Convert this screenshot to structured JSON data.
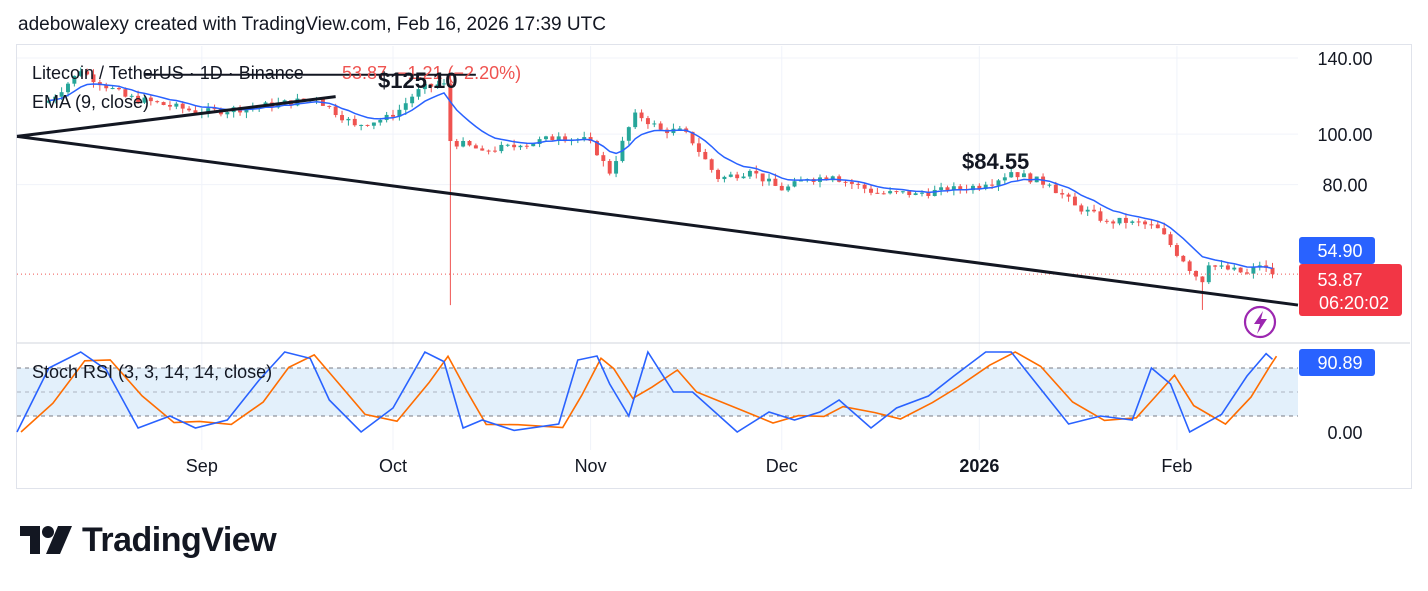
{
  "header": {
    "attribution": "adebowalexy created with TradingView.com, Feb 16, 2026 17:39 UTC"
  },
  "legend": {
    "symbol": "Litecoin / TetherUS · 1D · Binance",
    "last": "53.87",
    "change": "−1.21 (−2.20%)",
    "ema": "EMA (9, close)",
    "stoch": "Stoch RSI (3, 3, 14, 14, close)"
  },
  "annotations": {
    "high_label": "$125.10",
    "recent_high_label": "$84.55"
  },
  "price_axis": {
    "ticks": [
      {
        "value": 140,
        "label": "140.00"
      },
      {
        "value": 100,
        "label": "100.00"
      },
      {
        "value": 80,
        "label": "80.00"
      }
    ],
    "ema_badge": "54.90",
    "price_badge": "53.87",
    "countdown": "06:20:02"
  },
  "stoch_axis": {
    "ticks": [
      {
        "value": 0,
        "label": "0.00"
      }
    ],
    "k_badge": "90.89",
    "upper_band": 80,
    "lower_band": 20
  },
  "time_axis": [
    {
      "date": "2025-09-01",
      "label": "Sep",
      "bold": false
    },
    {
      "date": "2025-10-01",
      "label": "Oct",
      "bold": false
    },
    {
      "date": "2025-11-01",
      "label": "Nov",
      "bold": false
    },
    {
      "date": "2025-12-01",
      "label": "Dec",
      "bold": false
    },
    {
      "date": "2026-01-01",
      "label": "2026",
      "bold": true
    },
    {
      "date": "2026-02-01",
      "label": "Feb",
      "bold": false
    }
  ],
  "colors": {
    "up": "#26a69a",
    "down": "#ef5350",
    "ema": "#2962ff",
    "stoch_k": "#2962ff",
    "stoch_d": "#ff6d00",
    "trendline": "#131722",
    "price_badge": "#f23645",
    "ema_badge": "#2962ff",
    "band_fill": "#e3f0fb"
  },
  "logo": {
    "text": "TradingView",
    "icon": "tradingview-logo-icon"
  },
  "chart_data": [
    {
      "type": "candlestick",
      "title": "Litecoin / TetherUS · 1D · Binance",
      "timeframe": "1D",
      "y_scale": "log",
      "ylim": [
        44,
        145
      ],
      "x_range": [
        "2025-08-03",
        "2026-02-20"
      ],
      "last_close": 53.87,
      "change": -1.21,
      "change_percent": -2.2,
      "key_points": [
        {
          "date": "2025-08-08",
          "close": 116
        },
        {
          "date": "2025-08-13",
          "close": 132
        },
        {
          "date": "2025-08-20",
          "close": 118
        },
        {
          "date": "2025-09-01",
          "close": 110
        },
        {
          "date": "2025-09-10",
          "close": 113
        },
        {
          "date": "2025-09-19",
          "close": 117
        },
        {
          "date": "2025-09-25",
          "close": 104
        },
        {
          "date": "2025-10-01",
          "close": 108
        },
        {
          "date": "2025-10-05",
          "close": 122
        },
        {
          "date": "2025-10-09",
          "close": 125.1
        },
        {
          "date": "2025-10-10",
          "close": 97,
          "low": 47,
          "high": 131
        },
        {
          "date": "2025-10-15",
          "close": 93
        },
        {
          "date": "2025-10-21",
          "close": 95
        },
        {
          "date": "2025-10-27",
          "close": 99
        },
        {
          "date": "2025-11-01",
          "close": 97
        },
        {
          "date": "2025-11-04",
          "close": 84
        },
        {
          "date": "2025-11-08",
          "close": 110
        },
        {
          "date": "2025-11-12",
          "close": 102
        },
        {
          "date": "2025-11-16",
          "close": 101
        },
        {
          "date": "2025-11-21",
          "close": 82
        },
        {
          "date": "2025-11-26",
          "close": 85
        },
        {
          "date": "2025-12-01",
          "close": 78
        },
        {
          "date": "2025-12-05",
          "close": 82
        },
        {
          "date": "2025-12-09",
          "close": 83
        },
        {
          "date": "2025-12-16",
          "close": 77
        },
        {
          "date": "2025-12-22",
          "close": 77
        },
        {
          "date": "2025-12-27",
          "close": 78
        },
        {
          "date": "2026-01-02",
          "close": 80
        },
        {
          "date": "2026-01-06",
          "close": 84.55
        },
        {
          "date": "2026-01-12",
          "close": 80
        },
        {
          "date": "2026-01-16",
          "close": 73
        },
        {
          "date": "2026-01-21",
          "close": 68
        },
        {
          "date": "2026-01-25",
          "close": 68
        },
        {
          "date": "2026-01-29",
          "close": 66
        },
        {
          "date": "2026-02-02",
          "close": 57
        },
        {
          "date": "2026-02-05",
          "close": 52,
          "low": 46
        },
        {
          "date": "2026-02-06",
          "close": 56
        },
        {
          "date": "2026-02-09",
          "close": 55
        },
        {
          "date": "2026-02-12",
          "close": 54
        },
        {
          "date": "2026-02-14",
          "close": 56
        },
        {
          "date": "2026-02-16",
          "close": 53.87
        }
      ],
      "ema_9_last": 54.9,
      "trendline": [
        {
          "date": "2025-08-03",
          "price": 99
        },
        {
          "date": "2026-02-20",
          "price": 47
        }
      ],
      "resistance_line": {
        "from": "2025-08-23",
        "to": "2025-10-14",
        "price": 130
      }
    },
    {
      "type": "line",
      "title": "Stoch RSI (3, 3, 14, 14, close)",
      "ylim": [
        0,
        100
      ],
      "bands": [
        20,
        80
      ],
      "last_k": 90.89,
      "k_series": [
        {
          "date": "2025-08-03",
          "k": 0
        },
        {
          "date": "2025-08-08",
          "k": 80
        },
        {
          "date": "2025-08-13",
          "k": 100
        },
        {
          "date": "2025-08-17",
          "k": 78
        },
        {
          "date": "2025-08-22",
          "k": 5
        },
        {
          "date": "2025-08-27",
          "k": 20
        },
        {
          "date": "2025-08-31",
          "k": 5
        },
        {
          "date": "2025-09-05",
          "k": 15
        },
        {
          "date": "2025-09-10",
          "k": 65
        },
        {
          "date": "2025-09-14",
          "k": 100
        },
        {
          "date": "2025-09-18",
          "k": 92
        },
        {
          "date": "2025-09-21",
          "k": 40
        },
        {
          "date": "2025-09-26",
          "k": 0
        },
        {
          "date": "2025-10-01",
          "k": 30
        },
        {
          "date": "2025-10-06",
          "k": 100
        },
        {
          "date": "2025-10-09",
          "k": 88
        },
        {
          "date": "2025-10-12",
          "k": 5
        },
        {
          "date": "2025-10-15",
          "k": 15
        },
        {
          "date": "2025-10-20",
          "k": 2
        },
        {
          "date": "2025-10-27",
          "k": 10
        },
        {
          "date": "2025-10-30",
          "k": 90
        },
        {
          "date": "2025-11-02",
          "k": 95
        },
        {
          "date": "2025-11-04",
          "k": 60
        },
        {
          "date": "2025-11-07",
          "k": 20
        },
        {
          "date": "2025-11-10",
          "k": 100
        },
        {
          "date": "2025-11-14",
          "k": 50
        },
        {
          "date": "2025-11-17",
          "k": 50
        },
        {
          "date": "2025-11-24",
          "k": 0
        },
        {
          "date": "2025-11-29",
          "k": 25
        },
        {
          "date": "2025-12-03",
          "k": 15
        },
        {
          "date": "2025-12-07",
          "k": 25
        },
        {
          "date": "2025-12-10",
          "k": 40
        },
        {
          "date": "2025-12-15",
          "k": 5
        },
        {
          "date": "2025-12-19",
          "k": 30
        },
        {
          "date": "2025-12-24",
          "k": 45
        },
        {
          "date": "2025-12-28",
          "k": 70
        },
        {
          "date": "2026-01-02",
          "k": 100
        },
        {
          "date": "2026-01-06",
          "k": 100
        },
        {
          "date": "2026-01-10",
          "k": 60
        },
        {
          "date": "2026-01-15",
          "k": 10
        },
        {
          "date": "2026-01-20",
          "k": 20
        },
        {
          "date": "2026-01-25",
          "k": 15
        },
        {
          "date": "2026-01-28",
          "k": 80
        },
        {
          "date": "2026-01-31",
          "k": 60
        },
        {
          "date": "2026-02-03",
          "k": 0
        },
        {
          "date": "2026-02-08",
          "k": 22
        },
        {
          "date": "2026-02-12",
          "k": 70
        },
        {
          "date": "2026-02-15",
          "k": 98
        },
        {
          "date": "2026-02-16",
          "k": 90.89
        }
      ]
    }
  ]
}
